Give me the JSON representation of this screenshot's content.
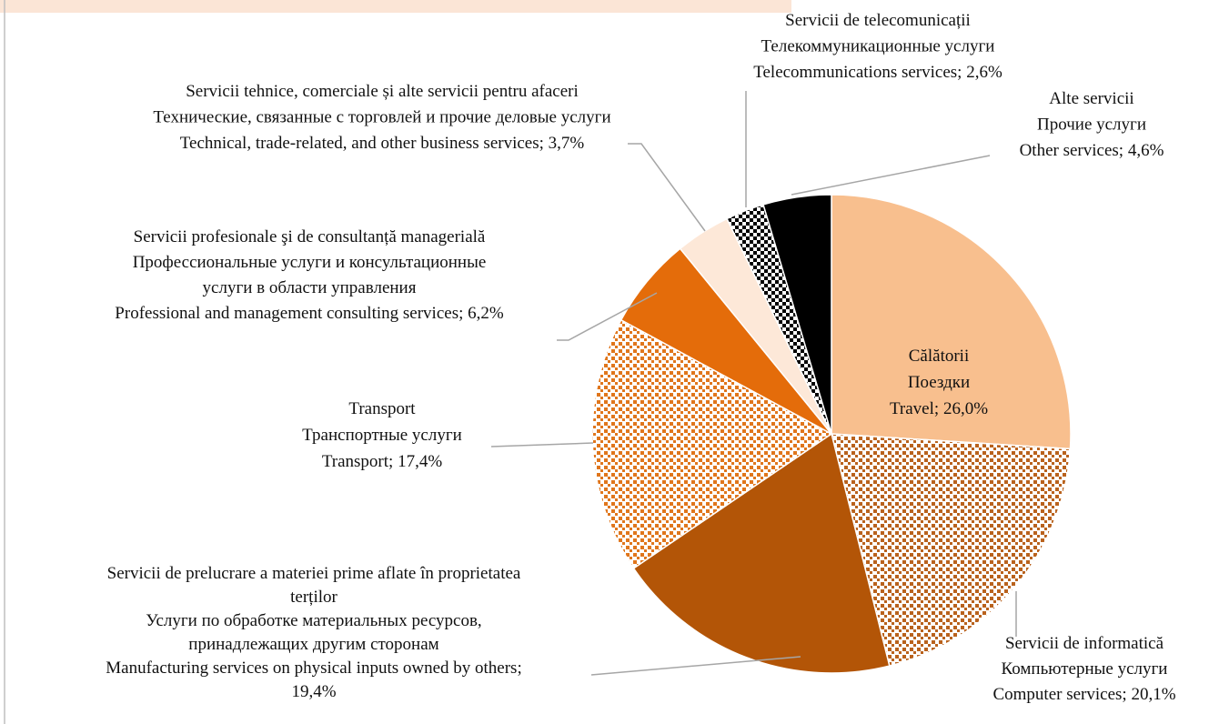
{
  "chart_data": {
    "type": "pie",
    "categories": [
      [
        "Călătorii",
        "Поездки",
        "Travel"
      ],
      [
        "Servicii de informatică",
        "Компьютерные услуги",
        "Computer services"
      ],
      [
        "Servicii de prelucrare a materiei prime aflate în proprietatea",
        "terților",
        "Услуги по обработке материальных ресурсов,",
        "принадлежащих другим сторонам",
        "Manufacturing services on physical inputs owned by others"
      ],
      [
        "Transport",
        "Транспортные услуги",
        "Transport"
      ],
      [
        "Servicii profesionale şi de consultanță managerială",
        "Профессиональные услуги и консультационные",
        "услуги в области управления",
        "Professional and management consulting services"
      ],
      [
        "Servicii tehnice, comerciale și alte servicii pentru afaceri",
        "Технические, связанные с торговлей и прочие деловые услуги",
        "Technical, trade-related, and other business services"
      ],
      [
        "Servicii de telecomunicații",
        "Телекоммуникационные услуги",
        "Telecommunications services"
      ],
      [
        "Alte servicii",
        "Прочие услуги",
        "Other services"
      ]
    ],
    "values": [
      26.0,
      20.1,
      19.4,
      17.4,
      6.2,
      3.7,
      2.6,
      4.6
    ],
    "value_labels": [
      "26,0%",
      "20,1%",
      "19,4%",
      "17,4%",
      "6,2%",
      "3,7%",
      "2,6%",
      "4,6%"
    ],
    "label_separator": "; ",
    "colors": [
      "#f8bf8e",
      "#b9621d",
      "#b35507",
      "#e0761c",
      "#e46c0a",
      "#fde8d8",
      "#000000",
      "#000000"
    ],
    "patterns": [
      null,
      "dots",
      null,
      "dots",
      null,
      null,
      "checker",
      null
    ]
  }
}
